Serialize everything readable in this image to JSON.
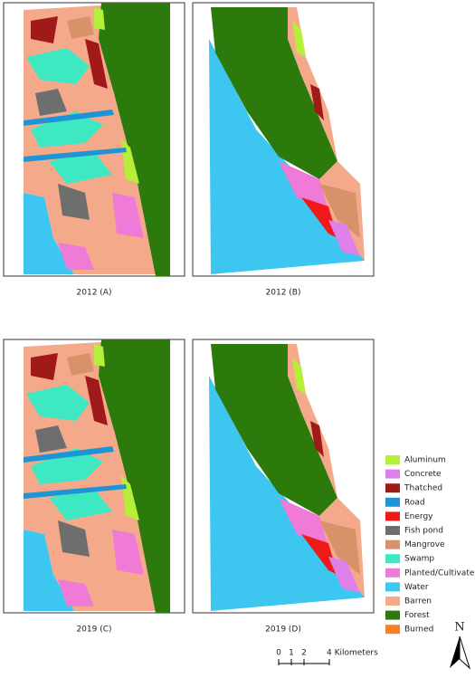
{
  "panels": [
    {
      "caption": "2012 (A)"
    },
    {
      "caption": "2012 (B)"
    },
    {
      "caption": "2019 (C)"
    },
    {
      "caption": "2019 (D)"
    }
  ],
  "legend": [
    {
      "label": "Aluminum",
      "color": "#b5ef3a"
    },
    {
      "label": "Concrete",
      "color": "#df80ea"
    },
    {
      "label": "Thatched",
      "color": "#a01a1a"
    },
    {
      "label": "Road",
      "color": "#1c95d6"
    },
    {
      "label": "Energy",
      "color": "#f01818"
    },
    {
      "label": "Fish pond",
      "color": "#6e6e6e"
    },
    {
      "label": "Mangrove",
      "color": "#d8926a"
    },
    {
      "label": "Swamp",
      "color": "#3de8c2"
    },
    {
      "label": "Planted/Cultivate",
      "color": "#f07ad8"
    },
    {
      "label": "Water",
      "color": "#3cc6f0"
    },
    {
      "label": "Barren",
      "color": "#f5a98b"
    },
    {
      "label": "Forest",
      "color": "#2b7a0b"
    },
    {
      "label": "Burned",
      "color": "#f5822a"
    }
  ],
  "scale_bar": {
    "labels": [
      "0",
      "1",
      "2",
      "4 Kilometers"
    ]
  },
  "north": "N"
}
